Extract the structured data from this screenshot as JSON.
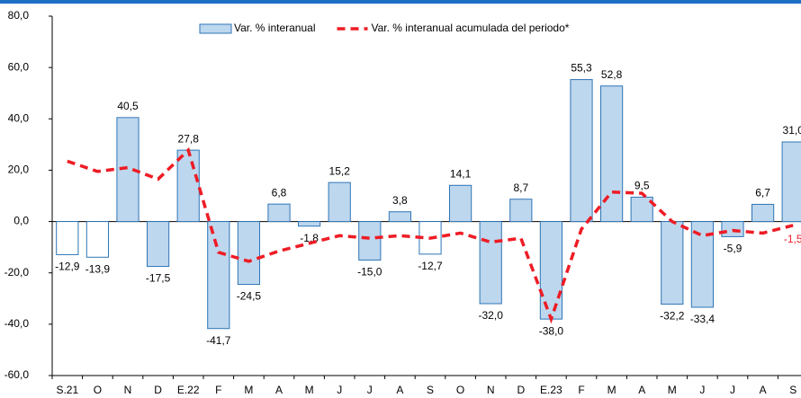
{
  "chart_data": {
    "type": "bar",
    "categories": [
      "S.21",
      "O",
      "N",
      "D",
      "E.22",
      "F",
      "M",
      "A",
      "M",
      "J",
      "J",
      "A",
      "S",
      "O",
      "N",
      "D",
      "E.23",
      "F",
      "M",
      "A",
      "M",
      "J",
      "J",
      "A",
      "S"
    ],
    "series": [
      {
        "name": "Var. % interanual",
        "type": "bar",
        "color": "#bdd7ee",
        "colors": [
          "#ffffff",
          "#ffffff",
          "#bdd7ee",
          "#bdd7ee",
          "#bdd7ee",
          "#bdd7ee",
          "#bdd7ee",
          "#bdd7ee",
          "#bdd7ee",
          "#bdd7ee",
          "#bdd7ee",
          "#bdd7ee",
          "#ffffff",
          "#bdd7ee",
          "#bdd7ee",
          "#bdd7ee",
          "#bdd7ee",
          "#bdd7ee",
          "#bdd7ee",
          "#bdd7ee",
          "#bdd7ee",
          "#bdd7ee",
          "#bdd7ee",
          "#bdd7ee",
          "#bdd7ee"
        ],
        "values": [
          -12.9,
          -13.9,
          40.5,
          -17.5,
          27.8,
          -41.7,
          -24.5,
          6.8,
          -1.8,
          15.2,
          -15.0,
          3.8,
          -12.7,
          14.1,
          -32.0,
          8.7,
          -38.0,
          55.3,
          52.8,
          9.5,
          -32.2,
          -33.4,
          -5.9,
          6.7,
          31.0
        ],
        "value_labels": [
          "-12,9",
          "-13,9",
          "40,5",
          "-17,5",
          "27,8",
          "-41,7",
          "-24,5",
          "6,8",
          "-1,8",
          "15,2",
          "-15,0",
          "3,8",
          "-12,7",
          "14,1",
          "-32,0",
          "8,7",
          "-38,0",
          "55,3",
          "52,8",
          "9,5",
          "-32,2",
          "-33,4",
          "-5,9",
          "6,7",
          "31,0"
        ]
      },
      {
        "name": "Var. % interanual acumulada del periodo*",
        "type": "line",
        "color": "#ee1c25",
        "values": [
          23.5,
          19.5,
          21,
          16.5,
          27.8,
          -12,
          -15.5,
          -11.5,
          -8.5,
          -5.5,
          -6.5,
          -5.5,
          -6.5,
          -4.5,
          -8,
          -6.5,
          -38,
          -3,
          11.5,
          11,
          0,
          -5.5,
          -3.5,
          -4.5,
          -1.5
        ],
        "value_labels": [
          null,
          null,
          null,
          null,
          null,
          null,
          null,
          null,
          null,
          null,
          null,
          null,
          null,
          null,
          null,
          null,
          null,
          null,
          null,
          null,
          null,
          null,
          null,
          null,
          "-1,5"
        ]
      }
    ],
    "ylim": [
      -60,
      80
    ],
    "yticks": [
      {
        "value": -60,
        "label": "-60,0"
      },
      {
        "value": -40,
        "label": "-40,0"
      },
      {
        "value": -20,
        "label": "-20,0"
      },
      {
        "value": 0,
        "label": "0,0"
      },
      {
        "value": 20,
        "label": "20,0"
      },
      {
        "value": 40,
        "label": "40,0"
      },
      {
        "value": 60,
        "label": "60,0"
      },
      {
        "value": 80,
        "label": "80,0"
      }
    ],
    "legend": "top"
  }
}
